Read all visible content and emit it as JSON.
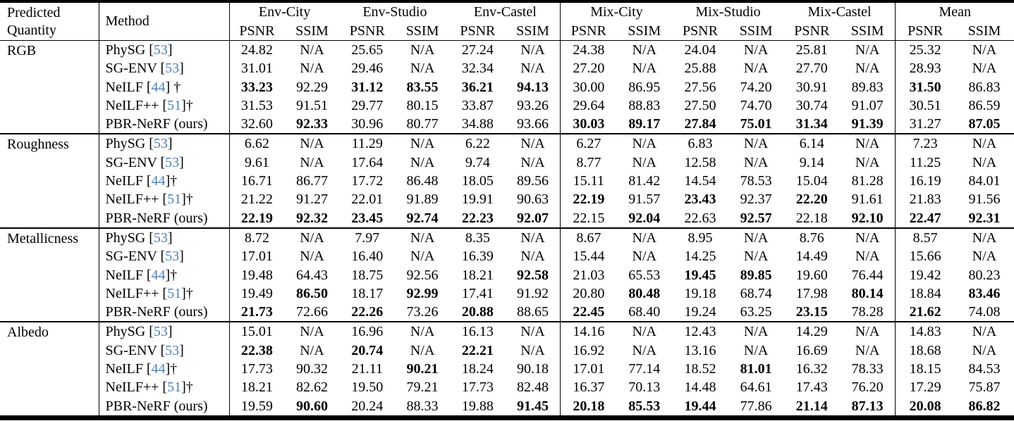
{
  "header": {
    "col1_line1": "Predicted",
    "col1_line2": "Quantity",
    "method": "Method",
    "groups": [
      "Env-City",
      "Env-Studio",
      "Env-Castel",
      "Mix-City",
      "Mix-Studio",
      "Mix-Castel",
      "Mean"
    ],
    "metrics": [
      "PSNR",
      "SSIM"
    ]
  },
  "colors": {
    "citation_link": "#4d7fb8",
    "text": "#000000",
    "background": "#ffffff",
    "rules": "#000000"
  },
  "sections": [
    {
      "quantity": "RGB",
      "rows": [
        {
          "method": "PhySG",
          "cite": "53",
          "dagger": "",
          "values": [
            "24.82",
            "N/A",
            "25.65",
            "N/A",
            "27.24",
            "N/A",
            "24.38",
            "N/A",
            "24.04",
            "N/A",
            "25.81",
            "N/A",
            "25.32",
            "N/A"
          ],
          "bold": []
        },
        {
          "method": "SG-ENV",
          "cite": "53",
          "dagger": "",
          "values": [
            "31.01",
            "N/A",
            "29.46",
            "N/A",
            "32.34",
            "N/A",
            "27.20",
            "N/A",
            "25.88",
            "N/A",
            "27.70",
            "N/A",
            "28.93",
            "N/A"
          ],
          "bold": []
        },
        {
          "method": "NeILF",
          "cite": "44",
          "dagger": " †",
          "values": [
            "33.23",
            "92.29",
            "31.12",
            "83.55",
            "36.21",
            "94.13",
            "30.00",
            "86.95",
            "27.56",
            "74.20",
            "30.91",
            "89.83",
            "31.50",
            "86.83"
          ],
          "bold": [
            0,
            2,
            3,
            4,
            5,
            12
          ]
        },
        {
          "method": "NeILF++",
          "cite": "51",
          "dagger": "†",
          "values": [
            "31.53",
            "91.51",
            "29.77",
            "80.15",
            "33.87",
            "93.26",
            "29.64",
            "88.83",
            "27.50",
            "74.70",
            "30.74",
            "91.07",
            "30.51",
            "86.59"
          ],
          "bold": []
        },
        {
          "method": "PBR-NeRF (ours)",
          "cite": null,
          "dagger": "",
          "values": [
            "32.60",
            "92.33",
            "30.96",
            "80.77",
            "34.88",
            "93.66",
            "30.03",
            "89.17",
            "27.84",
            "75.01",
            "31.34",
            "91.39",
            "31.27",
            "87.05"
          ],
          "bold": [
            1,
            6,
            7,
            8,
            9,
            10,
            11,
            13
          ]
        }
      ]
    },
    {
      "quantity": "Roughness",
      "rows": [
        {
          "method": "PhySG",
          "cite": "53",
          "dagger": "",
          "values": [
            "6.62",
            "N/A",
            "11.29",
            "N/A",
            "6.22",
            "N/A",
            "6.27",
            "N/A",
            "6.83",
            "N/A",
            "6.14",
            "N/A",
            "7.23",
            "N/A"
          ],
          "bold": []
        },
        {
          "method": "SG-ENV",
          "cite": "53",
          "dagger": "",
          "values": [
            "9.61",
            "N/A",
            "17.64",
            "N/A",
            "9.74",
            "N/A",
            "8.77",
            "N/A",
            "12.58",
            "N/A",
            "9.14",
            "N/A",
            "11.25",
            "N/A"
          ],
          "bold": []
        },
        {
          "method": "NeILF",
          "cite": "44",
          "dagger": "†",
          "values": [
            "16.71",
            "86.77",
            "17.72",
            "86.48",
            "18.05",
            "89.56",
            "15.11",
            "81.42",
            "14.54",
            "78.53",
            "15.04",
            "81.28",
            "16.19",
            "84.01"
          ],
          "bold": []
        },
        {
          "method": "NeILF++",
          "cite": "51",
          "dagger": "†",
          "values": [
            "21.22",
            "91.27",
            "22.01",
            "91.89",
            "19.91",
            "90.63",
            "22.19",
            "91.57",
            "23.43",
            "92.37",
            "22.20",
            "91.61",
            "21.83",
            "91.56"
          ],
          "bold": [
            6,
            8,
            10
          ]
        },
        {
          "method": "PBR-NeRF (ours)",
          "cite": null,
          "dagger": "",
          "values": [
            "22.19",
            "92.32",
            "23.45",
            "92.74",
            "22.23",
            "92.07",
            "22.15",
            "92.04",
            "22.63",
            "92.57",
            "22.18",
            "92.10",
            "22.47",
            "92.31"
          ],
          "bold": [
            0,
            1,
            2,
            3,
            4,
            5,
            7,
            9,
            11,
            12,
            13
          ]
        }
      ]
    },
    {
      "quantity": "Metallicness",
      "rows": [
        {
          "method": "PhySG",
          "cite": "53",
          "dagger": "",
          "values": [
            "8.72",
            "N/A",
            "7.97",
            "N/A",
            "8.35",
            "N/A",
            "8.67",
            "N/A",
            "8.95",
            "N/A",
            "8.76",
            "N/A",
            "8.57",
            "N/A"
          ],
          "bold": []
        },
        {
          "method": "SG-ENV",
          "cite": "53",
          "dagger": "",
          "values": [
            "17.01",
            "N/A",
            "16.40",
            "N/A",
            "16.39",
            "N/A",
            "15.44",
            "N/A",
            "14.25",
            "N/A",
            "14.49",
            "N/A",
            "15.66",
            "N/A"
          ],
          "bold": []
        },
        {
          "method": "NeILF",
          "cite": "44",
          "dagger": "†",
          "values": [
            "19.48",
            "64.43",
            "18.75",
            "92.56",
            "18.21",
            "92.58",
            "21.03",
            "65.53",
            "19.45",
            "89.85",
            "19.60",
            "76.44",
            "19.42",
            "80.23"
          ],
          "bold": [
            5,
            8,
            9
          ]
        },
        {
          "method": "NeILF++",
          "cite": "51",
          "dagger": "†",
          "values": [
            "19.49",
            "86.50",
            "18.17",
            "92.99",
            "17.41",
            "91.92",
            "20.80",
            "80.48",
            "19.18",
            "68.74",
            "17.98",
            "80.14",
            "18.84",
            "83.46"
          ],
          "bold": [
            1,
            3,
            7,
            11,
            13
          ]
        },
        {
          "method": "PBR-NeRF (ours)",
          "cite": null,
          "dagger": "",
          "values": [
            "21.73",
            "72.66",
            "22.26",
            "73.26",
            "20.88",
            "88.65",
            "22.45",
            "68.40",
            "19.24",
            "63.25",
            "23.15",
            "78.28",
            "21.62",
            "74.08"
          ],
          "bold": [
            0,
            2,
            4,
            6,
            10,
            12
          ]
        }
      ]
    },
    {
      "quantity": "Albedo",
      "rows": [
        {
          "method": "PhySG",
          "cite": "53",
          "dagger": "",
          "values": [
            "15.01",
            "N/A",
            "16.96",
            "N/A",
            "16.13",
            "N/A",
            "14.16",
            "N/A",
            "12.43",
            "N/A",
            "14.29",
            "N/A",
            "14.83",
            "N/A"
          ],
          "bold": []
        },
        {
          "method": "SG-ENV",
          "cite": "53",
          "dagger": "",
          "values": [
            "22.38",
            "N/A",
            "20.74",
            "N/A",
            "22.21",
            "N/A",
            "16.92",
            "N/A",
            "13.16",
            "N/A",
            "16.69",
            "N/A",
            "18.68",
            "N/A"
          ],
          "bold": [
            0,
            2,
            4
          ]
        },
        {
          "method": "NeILF",
          "cite": "44",
          "dagger": "†",
          "values": [
            "17.73",
            "90.32",
            "21.11",
            "90.21",
            "18.24",
            "90.18",
            "17.01",
            "77.14",
            "18.52",
            "81.01",
            "16.32",
            "78.33",
            "18.15",
            "84.53"
          ],
          "bold": [
            3,
            9
          ]
        },
        {
          "method": "NeILF++",
          "cite": "51",
          "dagger": "†",
          "values": [
            "18.21",
            "82.62",
            "19.50",
            "79.21",
            "17.73",
            "82.48",
            "16.37",
            "70.13",
            "14.48",
            "64.61",
            "17.43",
            "76.20",
            "17.29",
            "75.87"
          ],
          "bold": []
        },
        {
          "method": "PBR-NeRF (ours)",
          "cite": null,
          "dagger": "",
          "values": [
            "19.59",
            "90.60",
            "20.24",
            "88.33",
            "19.88",
            "91.45",
            "20.18",
            "85.53",
            "19.44",
            "77.86",
            "21.14",
            "87.13",
            "20.08",
            "86.82"
          ],
          "bold": [
            1,
            5,
            6,
            7,
            8,
            10,
            11,
            12,
            13
          ]
        }
      ]
    }
  ]
}
